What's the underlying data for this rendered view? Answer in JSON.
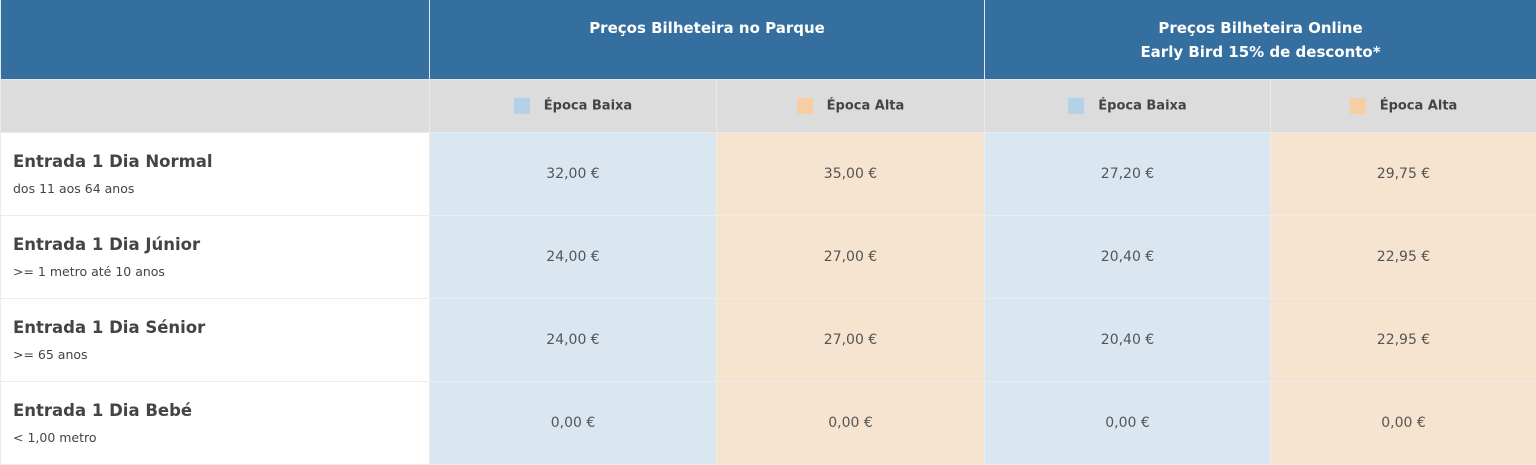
{
  "colors": {
    "header": "#356fa0",
    "subheader": "#dcdcdc",
    "low_season": "#b4d2e7",
    "high_season": "#f5cfa3",
    "low_cell": "#dae7f1",
    "high_cell": "#f7e4d0"
  },
  "header": {
    "park": {
      "title": "Preços Bilheteira no Parque"
    },
    "online": {
      "title": "Preços Bilheteira Online",
      "subtitle": "Early Bird 15% de desconto*"
    }
  },
  "subheader": {
    "low": "Época Baixa",
    "high": "Época Alta"
  },
  "rows": [
    {
      "title": "Entrada 1 Dia Normal",
      "subtitle": "dos 11 aos 64 anos",
      "prices": [
        "32,00 €",
        "35,00 €",
        "27,20 €",
        "29,75 €"
      ]
    },
    {
      "title": "Entrada 1 Dia Júnior",
      "subtitle": ">= 1 metro até 10 anos",
      "prices": [
        "24,00 €",
        "27,00 €",
        "20,40 €",
        "22,95 €"
      ]
    },
    {
      "title": "Entrada 1 Dia Sénior",
      "subtitle": ">= 65 anos",
      "prices": [
        "24,00 €",
        "27,00 €",
        "20,40 €",
        "22,95 €"
      ]
    },
    {
      "title": "Entrada 1 Dia Bebé",
      "subtitle": "< 1,00 metro",
      "prices": [
        "0,00 €",
        "0,00 €",
        "0,00 €",
        "0,00 €"
      ]
    }
  ]
}
